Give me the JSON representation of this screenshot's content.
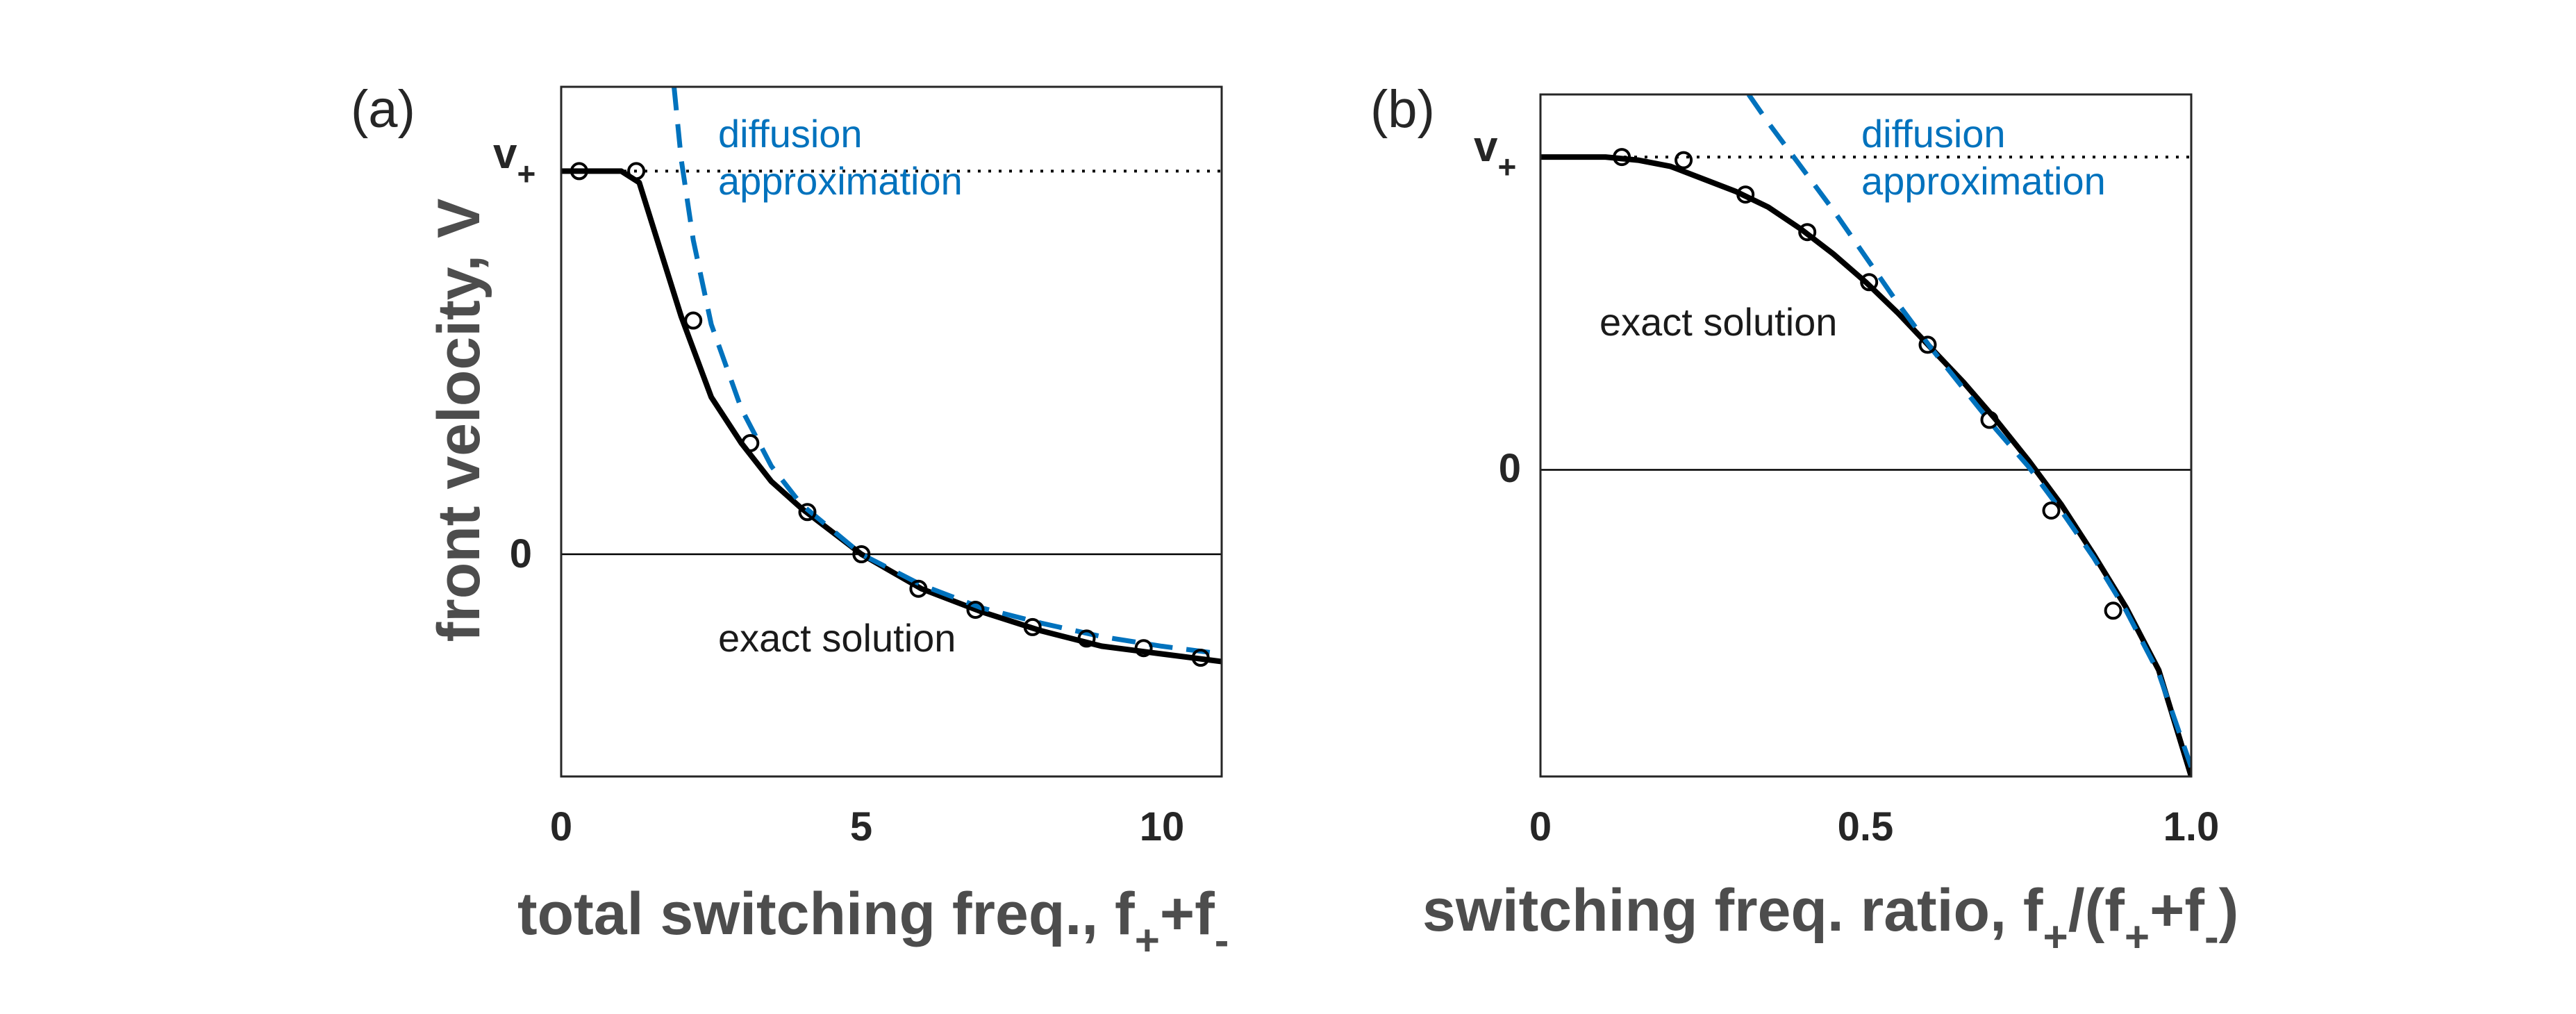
{
  "figure": {
    "ylabel": "front velocity, V",
    "vplus_label": "v",
    "vplus_sub": "+"
  },
  "chart_data": [
    {
      "type": "line",
      "panel": "(a)",
      "xlabel_main": "total switching freq.,  f",
      "xlabel_sub1": "+",
      "xlabel_mid": "+f",
      "xlabel_sub2": "-",
      "xlim": [
        0,
        11
      ],
      "ylim": [
        -0.58,
        1.22
      ],
      "xticks": [
        0,
        5,
        10
      ],
      "xtick_labels": [
        "0",
        "5",
        "10"
      ],
      "yticks": [
        0
      ],
      "ytick_labels": [
        "0"
      ],
      "vplus_value": 1.0,
      "annotations": {
        "diffusion_line1": "diffusion",
        "diffusion_line2": "approximation",
        "exact": "exact solution"
      },
      "series": [
        {
          "name": "exact solution",
          "style": "solid-black",
          "x": [
            0,
            0.5,
            1.0,
            1.3,
            1.6,
            2.0,
            2.5,
            3.0,
            3.5,
            4.0,
            5.0,
            6.0,
            7.0,
            8.0,
            9.0,
            10.0,
            11.0
          ],
          "y": [
            1.0,
            1.0,
            1.0,
            0.97,
            0.82,
            0.62,
            0.41,
            0.29,
            0.19,
            0.12,
            0.0,
            -0.09,
            -0.15,
            -0.2,
            -0.24,
            -0.26,
            -0.28
          ]
        },
        {
          "name": "diffusion approximation",
          "style": "dashed-blue",
          "x": [
            1.88,
            2.0,
            2.2,
            2.5,
            3.0,
            3.5,
            4.0,
            5.0,
            6.0,
            7.0,
            8.0,
            9.0,
            10.0,
            11.0
          ],
          "y": [
            1.22,
            1.03,
            0.82,
            0.6,
            0.38,
            0.23,
            0.13,
            0.0,
            -0.08,
            -0.14,
            -0.18,
            -0.215,
            -0.24,
            -0.26
          ]
        },
        {
          "name": "markers",
          "style": "open-circle",
          "x": [
            0.3,
            1.25,
            2.2,
            3.15,
            4.1,
            5.0,
            5.95,
            6.9,
            7.85,
            8.75,
            9.7,
            10.65
          ],
          "y": [
            1.0,
            1.0,
            0.61,
            0.29,
            0.11,
            0.0,
            -0.09,
            -0.145,
            -0.19,
            -0.22,
            -0.245,
            -0.27
          ]
        }
      ]
    },
    {
      "type": "line",
      "panel": "(b)",
      "xlabel_main": "switching freq. ratio, f",
      "xlabel_sub1": "+",
      "xlabel_mid": "/(f",
      "xlabel_sub2": "+",
      "xlabel_mid2": "+f",
      "xlabel_sub3": "-",
      "xlabel_end": ")",
      "xlim": [
        0,
        1
      ],
      "ylim": [
        -0.98,
        1.2
      ],
      "xticks": [
        0,
        0.5,
        1.0
      ],
      "xtick_labels": [
        "0",
        "0.5",
        "1.0"
      ],
      "yticks": [
        0
      ],
      "ytick_labels": [
        "0"
      ],
      "vplus_value": 1.0,
      "annotations": {
        "diffusion_line1": "diffusion",
        "diffusion_line2": "approximation",
        "exact": "exact solution"
      },
      "series": [
        {
          "name": "exact solution",
          "style": "solid-black",
          "x": [
            0,
            0.05,
            0.1,
            0.15,
            0.2,
            0.25,
            0.3,
            0.35,
            0.4,
            0.45,
            0.5,
            0.55,
            0.6,
            0.65,
            0.7,
            0.75,
            0.8,
            0.85,
            0.9,
            0.95,
            1.0
          ],
          "y": [
            1.0,
            1.0,
            1.0,
            0.99,
            0.97,
            0.93,
            0.89,
            0.84,
            0.77,
            0.69,
            0.6,
            0.5,
            0.39,
            0.28,
            0.16,
            0.03,
            -0.11,
            -0.27,
            -0.44,
            -0.64,
            -0.98
          ]
        },
        {
          "name": "diffusion approximation",
          "style": "dashed-blue",
          "x": [
            0.32,
            0.35,
            0.4,
            0.45,
            0.5,
            0.55,
            0.6,
            0.65,
            0.7,
            0.75,
            0.8,
            0.85,
            0.9,
            0.95,
            1.0
          ],
          "y": [
            1.2,
            1.11,
            0.97,
            0.83,
            0.68,
            0.53,
            0.39,
            0.26,
            0.13,
            0.01,
            -0.13,
            -0.28,
            -0.45,
            -0.65,
            -0.95
          ]
        },
        {
          "name": "markers",
          "style": "open-circle",
          "x": [
            0.125,
            0.22,
            0.315,
            0.41,
            0.505,
            0.595,
            0.69,
            0.785,
            0.88
          ],
          "y": [
            1.0,
            0.99,
            0.88,
            0.76,
            0.6,
            0.4,
            0.16,
            -0.13,
            -0.45
          ]
        }
      ]
    }
  ]
}
